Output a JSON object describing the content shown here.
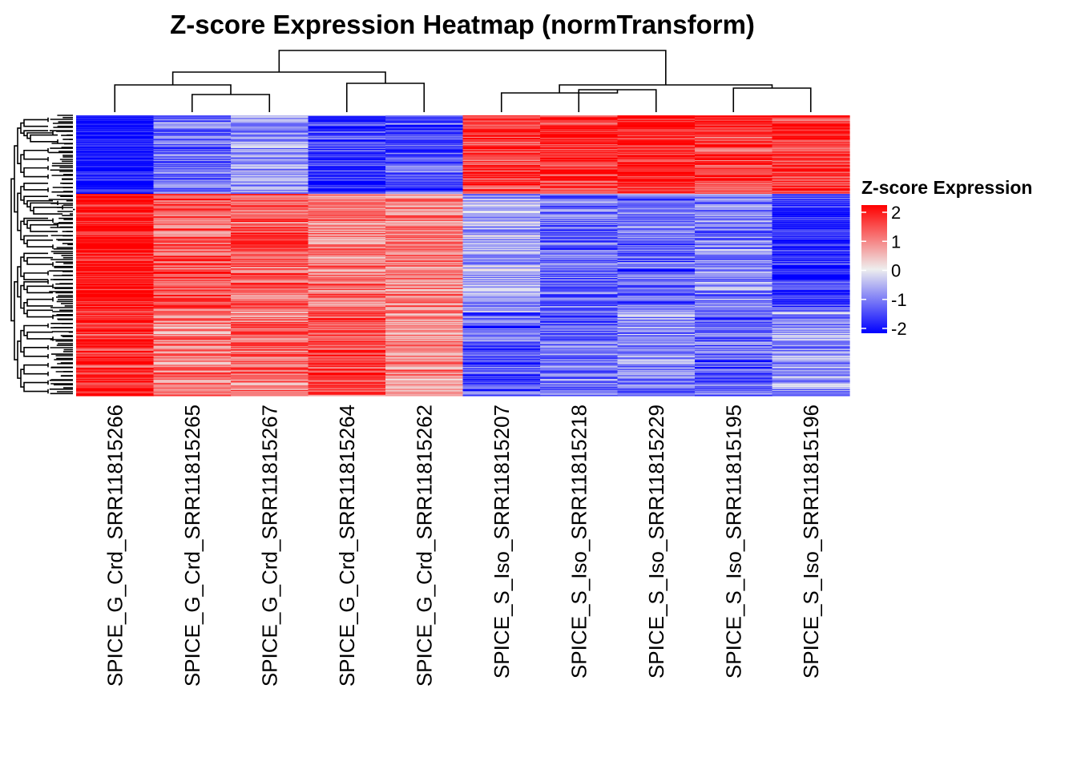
{
  "chart_data": {
    "type": "heatmap",
    "title": "Z-score Expression Heatmap (normTransform)",
    "columns": [
      "SPICE_G_Crd_SRR11815266",
      "SPICE_G_Crd_SRR11815265",
      "SPICE_G_Crd_SRR11815267",
      "SPICE_G_Crd_SRR11815264",
      "SPICE_G_Crd_SRR11815262",
      "SPICE_S_Iso_SRR11815207",
      "SPICE_S_Iso_SRR11815218",
      "SPICE_S_Iso_SRR11815229",
      "SPICE_S_Iso_SRR11815195",
      "SPICE_S_Iso_SRR11815196"
    ],
    "row_count_approx": 300,
    "row_blocks": [
      {
        "name": "cluster-1",
        "fraction": 0.28,
        "means": [
          -2.0,
          -1.1,
          -0.7,
          -1.5,
          -1.3,
          1.5,
          1.6,
          1.8,
          1.5,
          1.6
        ]
      },
      {
        "name": "cluster-2",
        "fraction": 0.42,
        "means": [
          1.9,
          1.3,
          1.3,
          1.0,
          0.9,
          -0.6,
          -1.1,
          -1.2,
          -0.9,
          -1.6
        ]
      },
      {
        "name": "cluster-3",
        "fraction": 0.3,
        "means": [
          1.6,
          0.9,
          1.0,
          1.4,
          0.8,
          -1.3,
          -1.1,
          -0.8,
          -1.2,
          -0.8
        ]
      }
    ],
    "column_dendrogram": "((SRR11815266,(SRR11815265,SRR11815267)),(SRR11815264,SRR11815262)),(SRR11815207,(SRR11815218,SRR11815229)),(SRR11815195,SRR11815196)",
    "legend": {
      "title": "Z-score Expression",
      "ticks": [
        "2",
        "1",
        "0",
        "-1",
        "-2"
      ],
      "range": [
        -2,
        2
      ],
      "colors": {
        "low": "#0000ff",
        "mid": "#eeeeee",
        "high": "#ff0000"
      }
    }
  }
}
